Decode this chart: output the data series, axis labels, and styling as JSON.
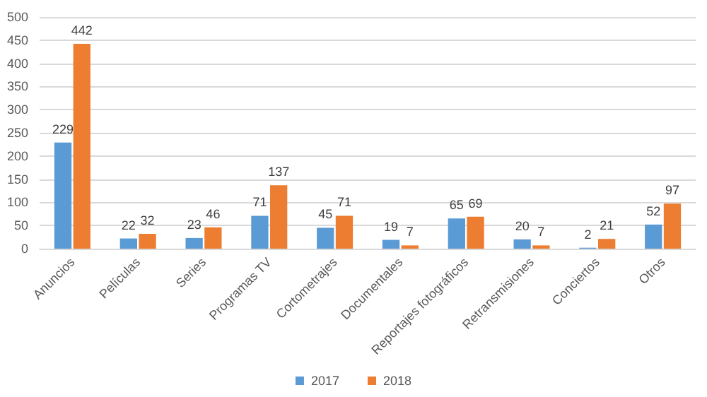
{
  "chart_data": {
    "type": "bar",
    "categories": [
      "Anuncios",
      "Películas",
      "Series",
      "Programas TV",
      "Cortometrajes",
      "Documentales",
      "Reportajes fotográficos",
      "Retransmisiones",
      "Conciertos",
      "Otros"
    ],
    "series": [
      {
        "name": "2017",
        "color": "#5b9bd5",
        "values": [
          229,
          22,
          23,
          71,
          45,
          19,
          65,
          20,
          2,
          52
        ]
      },
      {
        "name": "2018",
        "color": "#ed7d31",
        "values": [
          442,
          32,
          46,
          137,
          71,
          7,
          69,
          7,
          21,
          97
        ]
      }
    ],
    "ylim": [
      0,
      500
    ],
    "yticks": [
      0,
      50,
      100,
      150,
      200,
      250,
      300,
      350,
      400,
      450,
      500
    ],
    "grid": "y",
    "legend": "bottom",
    "data_labels": true
  }
}
